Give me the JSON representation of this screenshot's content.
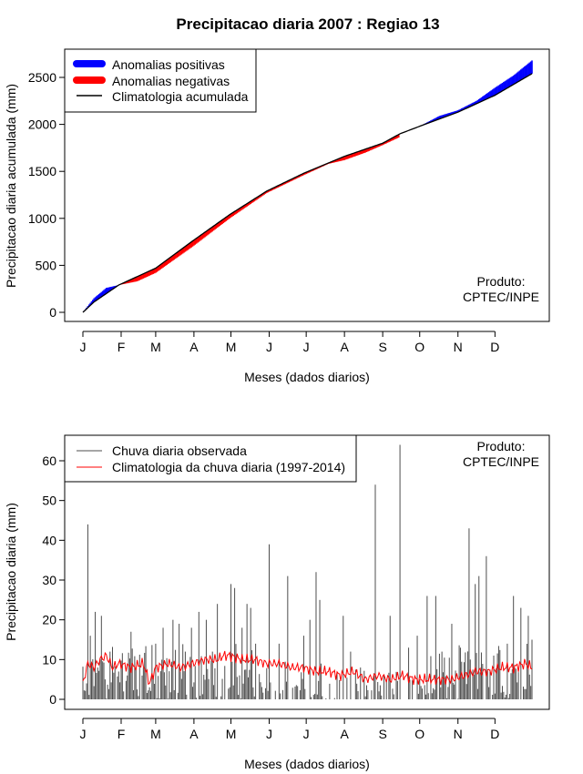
{
  "title": "Precipitacao diaria 2007 : Regiao 13",
  "colors": {
    "positive": "#0000ff",
    "negative": "#ff0000",
    "climatology": "#000000",
    "daily_rain": "#4d4d4d",
    "daily_clim": "#ff0000"
  },
  "chart_data": [
    {
      "type": "area",
      "name": "accumulated",
      "xlabel": "Meses (dados diarios)",
      "ylabel": "Precipitacao diaria acumulada (mm)",
      "xlim": [
        1,
        365
      ],
      "ylim": [
        0,
        2650
      ],
      "month_ticks": [
        "J",
        "F",
        "M",
        "A",
        "M",
        "J",
        "J",
        "A",
        "S",
        "O",
        "N",
        "D"
      ],
      "month_tick_days": [
        1,
        32,
        60,
        91,
        121,
        152,
        182,
        213,
        244,
        274,
        305,
        335
      ],
      "y_ticks": [
        0,
        500,
        1000,
        1500,
        2000,
        2500
      ],
      "legend": [
        "Anomalias positivas",
        "Anomalias negativas",
        "Climatologia acumulada"
      ],
      "credit": [
        "Produto:",
        "CPTEC/INPE"
      ],
      "climatology_knots": {
        "days": [
          1,
          10,
          30,
          60,
          90,
          120,
          150,
          180,
          213,
          244,
          258,
          274,
          305,
          335,
          365
        ],
        "values": [
          0,
          110,
          290,
          470,
          760,
          1040,
          1290,
          1480,
          1660,
          1800,
          1900,
          1980,
          2130,
          2310,
          2540
        ]
      },
      "observed_knots": {
        "days": [
          1,
          10,
          20,
          30,
          45,
          60,
          90,
          120,
          150,
          180,
          200,
          213,
          230,
          244,
          257,
          258,
          274,
          290,
          305,
          320,
          335,
          350,
          365
        ],
        "values": [
          0,
          150,
          260,
          290,
          330,
          420,
          700,
          1000,
          1270,
          1460,
          1580,
          1620,
          1700,
          1780,
          1860,
          1900,
          1980,
          2090,
          2150,
          2250,
          2390,
          2520,
          2680
        ]
      }
    },
    {
      "type": "line",
      "name": "daily",
      "xlabel": "Meses (dados diarios)",
      "ylabel": "Precipitacao diaria (mm)",
      "xlim": [
        1,
        365
      ],
      "ylim": [
        0,
        65
      ],
      "month_ticks": [
        "J",
        "F",
        "M",
        "A",
        "M",
        "J",
        "J",
        "A",
        "S",
        "O",
        "N",
        "D"
      ],
      "month_tick_days": [
        1,
        32,
        60,
        91,
        121,
        152,
        182,
        213,
        244,
        274,
        305,
        335
      ],
      "y_ticks": [
        0,
        10,
        20,
        30,
        40,
        50,
        60
      ],
      "legend": [
        "Chuva diaria observada",
        "Climatologia da chuva diaria (1997-2014)"
      ],
      "credit": [
        "Produto:",
        "CPTEC/INPE"
      ],
      "observed_peaks": [
        [
          5,
          44
        ],
        [
          7,
          16
        ],
        [
          11,
          22
        ],
        [
          16,
          21
        ],
        [
          23,
          12
        ],
        [
          40,
          17
        ],
        [
          50,
          8
        ],
        [
          60,
          14
        ],
        [
          66,
          18
        ],
        [
          74,
          20
        ],
        [
          79,
          19
        ],
        [
          84,
          12
        ],
        [
          89,
          18
        ],
        [
          95,
          22
        ],
        [
          101,
          20
        ],
        [
          106,
          12
        ],
        [
          110,
          24
        ],
        [
          121,
          29
        ],
        [
          124,
          28
        ],
        [
          130,
          18
        ],
        [
          134,
          24
        ],
        [
          137,
          23
        ],
        [
          141,
          14
        ],
        [
          152,
          39
        ],
        [
          160,
          14
        ],
        [
          167,
          31
        ],
        [
          180,
          16
        ],
        [
          185,
          20
        ],
        [
          190,
          32
        ],
        [
          193,
          25
        ],
        [
          212,
          21
        ],
        [
          218,
          12
        ],
        [
          226,
          8
        ],
        [
          238,
          54
        ],
        [
          250,
          21
        ],
        [
          258,
          64
        ],
        [
          265,
          13
        ],
        [
          272,
          16
        ],
        [
          280,
          26
        ],
        [
          287,
          26
        ],
        [
          292,
          12
        ],
        [
          300,
          19
        ],
        [
          307,
          13
        ],
        [
          314,
          43
        ],
        [
          319,
          29
        ],
        [
          322,
          31
        ],
        [
          328,
          36
        ],
        [
          334,
          11
        ],
        [
          345,
          14
        ],
        [
          350,
          26
        ],
        [
          356,
          23
        ],
        [
          362,
          21
        ],
        [
          365,
          15
        ]
      ],
      "climatology_knots": {
        "days": [
          1,
          5,
          10,
          15,
          20,
          25,
          30,
          40,
          50,
          55,
          60,
          70,
          80,
          90,
          100,
          110,
          115,
          120,
          130,
          140,
          150,
          160,
          170,
          180,
          190,
          200,
          210,
          220,
          230,
          240,
          250,
          260,
          270,
          280,
          290,
          300,
          310,
          320,
          330,
          340,
          350,
          360,
          365
        ],
        "values": [
          4,
          9,
          8,
          10,
          11,
          8,
          9,
          8,
          9,
          4,
          8,
          9,
          8,
          9,
          10,
          10,
          11,
          11,
          10,
          10,
          9,
          9,
          8,
          8,
          7,
          7,
          6,
          7,
          5,
          6,
          5,
          6,
          5,
          5,
          5,
          5,
          6,
          7,
          7,
          8,
          8,
          9,
          8
        ]
      }
    }
  ]
}
